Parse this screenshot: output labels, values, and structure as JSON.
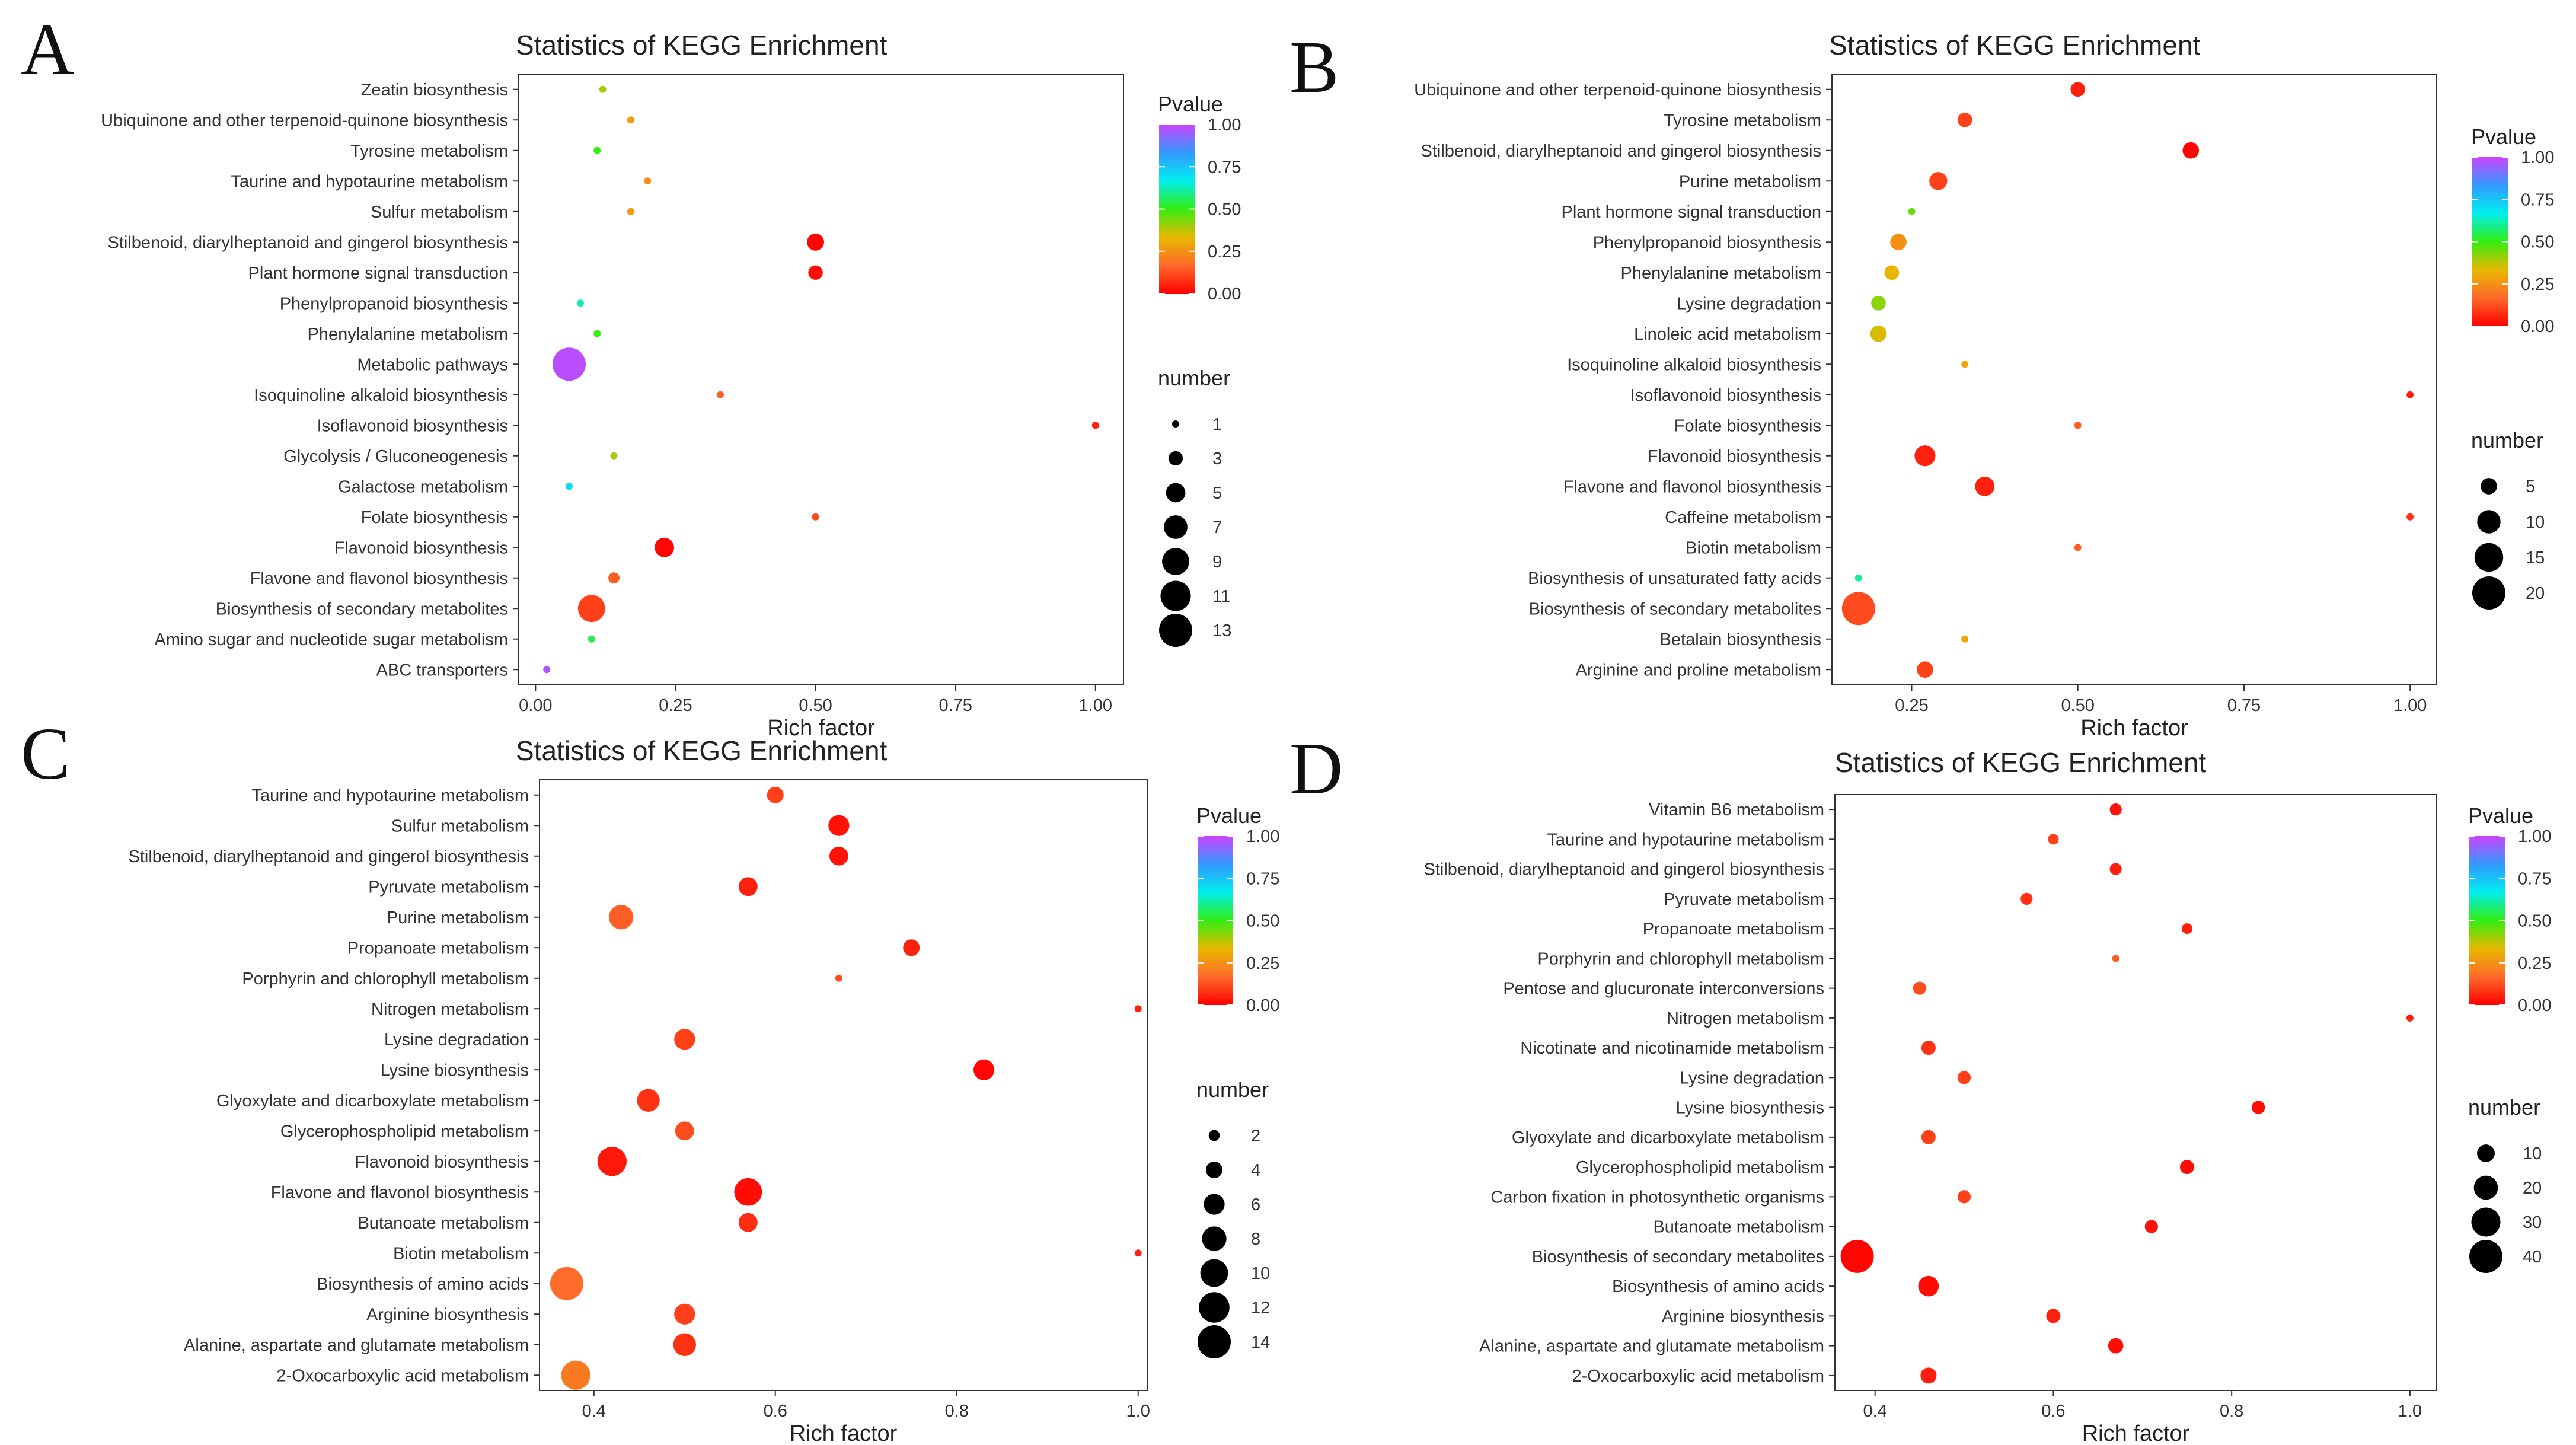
{
  "colors": {
    "background": "#ffffff",
    "text": "#222222",
    "axis": "#333333",
    "gradient": [
      "#ff0000",
      "#ff6a2a",
      "#e8b800",
      "#33ee11",
      "#00eeee",
      "#3399ff",
      "#cc44ff"
    ]
  },
  "chart_data": [
    {
      "panel": "A",
      "type": "scatter",
      "title": "Statistics of KEGG Enrichment",
      "xlabel": "Rich factor",
      "ylabel": "",
      "xlim": [
        -0.03,
        1.05
      ],
      "xticks": [
        0.0,
        0.25,
        0.5,
        0.75,
        1.0
      ],
      "xtick_labels": [
        "0.00",
        "0.25",
        "0.50",
        "0.75",
        "1.00"
      ],
      "legend_color_title": "Pvalue",
      "legend_color_ticks": [
        "1.00",
        "0.75",
        "0.50",
        "0.25",
        "0.00"
      ],
      "legend_color_values": [
        1.0,
        0.75,
        0.5,
        0.25,
        0.0
      ],
      "legend_size_title": "number",
      "legend_size_values": [
        1,
        3,
        5,
        7,
        9,
        11,
        13
      ],
      "number_range": [
        1,
        13
      ],
      "points": [
        {
          "pathway": "Zeatin biosynthesis",
          "rich_factor": 0.12,
          "pvalue": 0.4,
          "number": 1
        },
        {
          "pathway": "Ubiquinone and other terpenoid-quinone biosynthesis",
          "rich_factor": 0.17,
          "pvalue": 0.27,
          "number": 1
        },
        {
          "pathway": "Tyrosine metabolism",
          "rich_factor": 0.11,
          "pvalue": 0.5,
          "number": 1
        },
        {
          "pathway": "Taurine and hypotaurine metabolism",
          "rich_factor": 0.2,
          "pvalue": 0.25,
          "number": 1
        },
        {
          "pathway": "Sulfur metabolism",
          "rich_factor": 0.17,
          "pvalue": 0.27,
          "number": 1
        },
        {
          "pathway": "Stilbenoid, diarylheptanoid and gingerol biosynthesis",
          "rich_factor": 0.5,
          "pvalue": 0.01,
          "number": 4
        },
        {
          "pathway": "Plant hormone signal transduction",
          "rich_factor": 0.5,
          "pvalue": 0.02,
          "number": 3
        },
        {
          "pathway": "Phenylpropanoid biosynthesis",
          "rich_factor": 0.08,
          "pvalue": 0.62,
          "number": 1
        },
        {
          "pathway": "Phenylalanine metabolism",
          "rich_factor": 0.11,
          "pvalue": 0.5,
          "number": 1
        },
        {
          "pathway": "Metabolic pathways",
          "rich_factor": 0.06,
          "pvalue": 0.98,
          "number": 13
        },
        {
          "pathway": "Isoquinoline alkaloid biosynthesis",
          "rich_factor": 0.33,
          "pvalue": 0.15,
          "number": 1
        },
        {
          "pathway": "Isoflavonoid biosynthesis",
          "rich_factor": 1.0,
          "pvalue": 0.05,
          "number": 1
        },
        {
          "pathway": "Glycolysis / Gluconeogenesis",
          "rich_factor": 0.14,
          "pvalue": 0.4,
          "number": 1
        },
        {
          "pathway": "Galactose metabolism",
          "rich_factor": 0.06,
          "pvalue": 0.7,
          "number": 1
        },
        {
          "pathway": "Folate biosynthesis",
          "rich_factor": 0.5,
          "pvalue": 0.12,
          "number": 1
        },
        {
          "pathway": "Flavonoid biosynthesis",
          "rich_factor": 0.23,
          "pvalue": 0.01,
          "number": 5
        },
        {
          "pathway": "Flavone and flavonol biosynthesis",
          "rich_factor": 0.14,
          "pvalue": 0.15,
          "number": 2
        },
        {
          "pathway": "Biosynthesis of secondary metabolites",
          "rich_factor": 0.1,
          "pvalue": 0.1,
          "number": 9
        },
        {
          "pathway": "Amino sugar and nucleotide sugar metabolism",
          "rich_factor": 0.1,
          "pvalue": 0.55,
          "number": 1
        },
        {
          "pathway": "ABC transporters",
          "rich_factor": 0.02,
          "pvalue": 0.97,
          "number": 1
        }
      ]
    },
    {
      "panel": "B",
      "type": "scatter",
      "title": "Statistics of KEGG Enrichment",
      "xlabel": "Rich factor",
      "ylabel": "",
      "xlim": [
        0.13,
        1.04
      ],
      "xticks": [
        0.25,
        0.5,
        0.75,
        1.0
      ],
      "xtick_labels": [
        "0.25",
        "0.50",
        "0.75",
        "1.00"
      ],
      "legend_color_title": "Pvalue",
      "legend_color_ticks": [
        "1.00",
        "0.75",
        "0.50",
        "0.25",
        "0.00"
      ],
      "legend_color_values": [
        1.0,
        0.75,
        0.5,
        0.25,
        0.0
      ],
      "legend_size_title": "number",
      "legend_size_values": [
        5,
        10,
        15,
        20
      ],
      "number_range": [
        1,
        20
      ],
      "points": [
        {
          "pathway": "Ubiquinone and other terpenoid-quinone biosynthesis",
          "rich_factor": 0.5,
          "pvalue": 0.05,
          "number": 4
        },
        {
          "pathway": "Tyrosine metabolism",
          "rich_factor": 0.33,
          "pvalue": 0.1,
          "number": 4
        },
        {
          "pathway": "Stilbenoid, diarylheptanoid and gingerol biosynthesis",
          "rich_factor": 0.67,
          "pvalue": 0.01,
          "number": 5
        },
        {
          "pathway": "Purine metabolism",
          "rich_factor": 0.29,
          "pvalue": 0.1,
          "number": 6
        },
        {
          "pathway": "Plant hormone signal transduction",
          "rich_factor": 0.25,
          "pvalue": 0.45,
          "number": 1
        },
        {
          "pathway": "Phenylpropanoid biosynthesis",
          "rich_factor": 0.23,
          "pvalue": 0.25,
          "number": 5
        },
        {
          "pathway": "Phenylalanine metabolism",
          "rich_factor": 0.22,
          "pvalue": 0.33,
          "number": 4
        },
        {
          "pathway": "Lysine degradation",
          "rich_factor": 0.2,
          "pvalue": 0.42,
          "number": 4
        },
        {
          "pathway": "Linoleic acid metabolism",
          "rich_factor": 0.2,
          "pvalue": 0.35,
          "number": 5
        },
        {
          "pathway": "Isoquinoline alkaloid biosynthesis",
          "rich_factor": 0.33,
          "pvalue": 0.3,
          "number": 1
        },
        {
          "pathway": "Isoflavonoid biosynthesis",
          "rich_factor": 1.0,
          "pvalue": 0.05,
          "number": 1
        },
        {
          "pathway": "Folate biosynthesis",
          "rich_factor": 0.5,
          "pvalue": 0.15,
          "number": 1
        },
        {
          "pathway": "Flavonoid biosynthesis",
          "rich_factor": 0.27,
          "pvalue": 0.05,
          "number": 8
        },
        {
          "pathway": "Flavone and flavonol biosynthesis",
          "rich_factor": 0.36,
          "pvalue": 0.05,
          "number": 7
        },
        {
          "pathway": "Caffeine metabolism",
          "rich_factor": 1.0,
          "pvalue": 0.08,
          "number": 1
        },
        {
          "pathway": "Biotin metabolism",
          "rich_factor": 0.5,
          "pvalue": 0.15,
          "number": 1
        },
        {
          "pathway": "Biosynthesis of unsaturated fatty acids",
          "rich_factor": 0.17,
          "pvalue": 0.6,
          "number": 1
        },
        {
          "pathway": "Biosynthesis of secondary metabolites",
          "rich_factor": 0.17,
          "pvalue": 0.12,
          "number": 20
        },
        {
          "pathway": "Betalain biosynthesis",
          "rich_factor": 0.33,
          "pvalue": 0.3,
          "number": 1
        },
        {
          "pathway": "Arginine and proline metabolism",
          "rich_factor": 0.27,
          "pvalue": 0.1,
          "number": 5
        }
      ]
    },
    {
      "panel": "C",
      "type": "scatter",
      "title": "Statistics of KEGG Enrichment",
      "xlabel": "Rich factor",
      "ylabel": "",
      "xlim": [
        0.34,
        1.01
      ],
      "xticks": [
        0.4,
        0.6,
        0.8,
        1.0
      ],
      "xtick_labels": [
        "0.4",
        "0.6",
        "0.8",
        "1.0"
      ],
      "legend_color_title": "Pvalue",
      "legend_color_ticks": [
        "1.00",
        "0.75",
        "0.50",
        "0.25",
        "0.00"
      ],
      "legend_color_values": [
        1.0,
        0.75,
        0.5,
        0.25,
        0.0
      ],
      "legend_size_title": "number",
      "legend_size_values": [
        2,
        4,
        6,
        8,
        10,
        12,
        14
      ],
      "number_range": [
        1,
        14
      ],
      "points": [
        {
          "pathway": "Taurine and hypotaurine metabolism",
          "rich_factor": 0.6,
          "pvalue": 0.1,
          "number": 4
        },
        {
          "pathway": "Sulfur metabolism",
          "rich_factor": 0.67,
          "pvalue": 0.03,
          "number": 6
        },
        {
          "pathway": "Stilbenoid, diarylheptanoid and gingerol biosynthesis",
          "rich_factor": 0.67,
          "pvalue": 0.03,
          "number": 5
        },
        {
          "pathway": "Pyruvate metabolism",
          "rich_factor": 0.57,
          "pvalue": 0.05,
          "number": 5
        },
        {
          "pathway": "Purine metabolism",
          "rich_factor": 0.43,
          "pvalue": 0.15,
          "number": 8
        },
        {
          "pathway": "Propanoate metabolism",
          "rich_factor": 0.75,
          "pvalue": 0.05,
          "number": 4
        },
        {
          "pathway": "Porphyrin and chlorophyll metabolism",
          "rich_factor": 0.67,
          "pvalue": 0.12,
          "number": 1
        },
        {
          "pathway": "Nitrogen metabolism",
          "rich_factor": 1.0,
          "pvalue": 0.05,
          "number": 1
        },
        {
          "pathway": "Lysine degradation",
          "rich_factor": 0.5,
          "pvalue": 0.1,
          "number": 6
        },
        {
          "pathway": "Lysine biosynthesis",
          "rich_factor": 0.83,
          "pvalue": 0.01,
          "number": 6
        },
        {
          "pathway": "Glyoxylate and dicarboxylate metabolism",
          "rich_factor": 0.46,
          "pvalue": 0.08,
          "number": 7
        },
        {
          "pathway": "Glycerophospholipid metabolism",
          "rich_factor": 0.5,
          "pvalue": 0.12,
          "number": 5
        },
        {
          "pathway": "Flavonoid biosynthesis",
          "rich_factor": 0.42,
          "pvalue": 0.04,
          "number": 11
        },
        {
          "pathway": "Flavone and flavonol biosynthesis",
          "rich_factor": 0.57,
          "pvalue": 0.02,
          "number": 10
        },
        {
          "pathway": "Butanoate metabolism",
          "rich_factor": 0.57,
          "pvalue": 0.07,
          "number": 5
        },
        {
          "pathway": "Biotin metabolism",
          "rich_factor": 1.0,
          "pvalue": 0.05,
          "number": 1
        },
        {
          "pathway": "Biosynthesis of amino acids",
          "rich_factor": 0.37,
          "pvalue": 0.17,
          "number": 14
        },
        {
          "pathway": "Arginine biosynthesis",
          "rich_factor": 0.5,
          "pvalue": 0.1,
          "number": 6
        },
        {
          "pathway": "Alanine, aspartate and glutamate metabolism",
          "rich_factor": 0.5,
          "pvalue": 0.08,
          "number": 7
        },
        {
          "pathway": "2-Oxocarboxylic acid metabolism",
          "rich_factor": 0.38,
          "pvalue": 0.2,
          "number": 11
        }
      ]
    },
    {
      "panel": "D",
      "type": "scatter",
      "title": "Statistics of KEGG Enrichment",
      "xlabel": "Rich factor",
      "ylabel": "",
      "xlim": [
        0.355,
        1.03
      ],
      "xticks": [
        0.4,
        0.6,
        0.8,
        1.0
      ],
      "xtick_labels": [
        "0.4",
        "0.6",
        "0.8",
        "1.0"
      ],
      "legend_color_title": "Pvalue",
      "legend_color_ticks": [
        "1.00",
        "0.75",
        "0.50",
        "0.25",
        "0.00"
      ],
      "legend_color_values": [
        1.0,
        0.75,
        0.5,
        0.25,
        0.0
      ],
      "legend_size_title": "number",
      "legend_size_values": [
        10,
        20,
        30,
        40
      ],
      "number_range": [
        1,
        40
      ],
      "points": [
        {
          "pathway": "Vitamin B6 metabolism",
          "rich_factor": 0.67,
          "pvalue": 0.03,
          "number": 4
        },
        {
          "pathway": "Taurine and hypotaurine metabolism",
          "rich_factor": 0.6,
          "pvalue": 0.1,
          "number": 3
        },
        {
          "pathway": "Stilbenoid, diarylheptanoid and gingerol biosynthesis",
          "rich_factor": 0.67,
          "pvalue": 0.05,
          "number": 4
        },
        {
          "pathway": "Pyruvate metabolism",
          "rich_factor": 0.57,
          "pvalue": 0.08,
          "number": 4
        },
        {
          "pathway": "Propanoate metabolism",
          "rich_factor": 0.75,
          "pvalue": 0.05,
          "number": 3
        },
        {
          "pathway": "Porphyrin and chlorophyll metabolism",
          "rich_factor": 0.67,
          "pvalue": 0.15,
          "number": 1
        },
        {
          "pathway": "Pentose and glucuronate interconversions",
          "rich_factor": 0.45,
          "pvalue": 0.12,
          "number": 5
        },
        {
          "pathway": "Nitrogen metabolism",
          "rich_factor": 1.0,
          "pvalue": 0.05,
          "number": 1
        },
        {
          "pathway": "Nicotinate and nicotinamide metabolism",
          "rich_factor": 0.46,
          "pvalue": 0.08,
          "number": 6
        },
        {
          "pathway": "Lysine degradation",
          "rich_factor": 0.5,
          "pvalue": 0.1,
          "number": 5
        },
        {
          "pathway": "Lysine biosynthesis",
          "rich_factor": 0.83,
          "pvalue": 0.02,
          "number": 5
        },
        {
          "pathway": "Glyoxylate and dicarboxylate metabolism",
          "rich_factor": 0.46,
          "pvalue": 0.1,
          "number": 6
        },
        {
          "pathway": "Glycerophospholipid metabolism",
          "rich_factor": 0.75,
          "pvalue": 0.02,
          "number": 6
        },
        {
          "pathway": "Carbon fixation in photosynthetic organisms",
          "rich_factor": 0.5,
          "pvalue": 0.1,
          "number": 5
        },
        {
          "pathway": "Butanoate metabolism",
          "rich_factor": 0.71,
          "pvalue": 0.03,
          "number": 5
        },
        {
          "pathway": "Biosynthesis of secondary metabolites",
          "rich_factor": 0.38,
          "pvalue": 0.01,
          "number": 40
        },
        {
          "pathway": "Biosynthesis of amino acids",
          "rich_factor": 0.46,
          "pvalue": 0.02,
          "number": 14
        },
        {
          "pathway": "Arginine biosynthesis",
          "rich_factor": 0.6,
          "pvalue": 0.05,
          "number": 6
        },
        {
          "pathway": "Alanine, aspartate and glutamate metabolism",
          "rich_factor": 0.67,
          "pvalue": 0.02,
          "number": 7
        },
        {
          "pathway": "2-Oxocarboxylic acid metabolism",
          "rich_factor": 0.46,
          "pvalue": 0.05,
          "number": 8
        }
      ]
    }
  ]
}
